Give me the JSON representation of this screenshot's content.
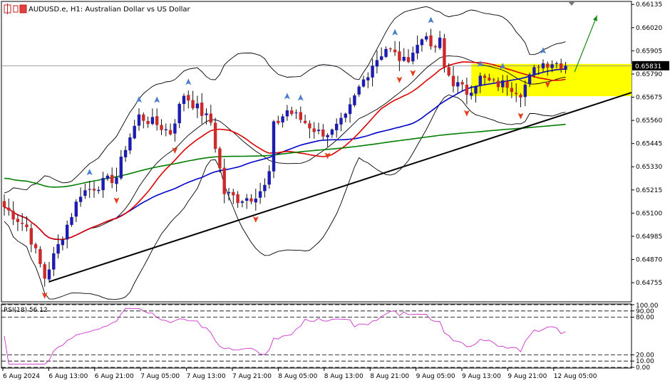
{
  "header": {
    "symbol": "AUDUSD.e",
    "timeframe": "H1",
    "description": "Australian Dollar vs US Dollar",
    "text": "AUDUSD.e, H1:  Australian Dollar vs US Dollar"
  },
  "chart_data": {
    "type": "candlestick",
    "price_axis_ticks": [
      "0.66135",
      "0.66020",
      "0.65905",
      "0.65790",
      "0.65675",
      "0.65560",
      "0.65445",
      "0.65330",
      "0.65215",
      "0.65100",
      "0.64985",
      "0.64870",
      "0.64755"
    ],
    "ylim": [
      0.6466,
      0.6615
    ],
    "current_price_label": "0.65831",
    "current_price": 0.65831,
    "time_axis_labels": [
      "6 Aug 2024",
      "6 Aug 13:00",
      "6 Aug 21:00",
      "7 Aug 05:00",
      "7 Aug 13:00",
      "7 Aug 21:00",
      "8 Aug 05:00",
      "8 Aug 13:00",
      "8 Aug 21:00",
      "9 Aug 05:00",
      "9 Aug 13:00",
      "9 Aug 21:00",
      "12 Aug 05:00"
    ],
    "candles_shown": 126,
    "close_anchors": [
      [
        0,
        0.6513
      ],
      [
        5,
        0.6503
      ],
      [
        9,
        0.6478
      ],
      [
        13,
        0.6499
      ],
      [
        17,
        0.652
      ],
      [
        21,
        0.6524
      ],
      [
        25,
        0.6528
      ],
      [
        27,
        0.6543
      ],
      [
        30,
        0.6558
      ],
      [
        34,
        0.6554
      ],
      [
        37,
        0.655
      ],
      [
        40,
        0.6569
      ],
      [
        43,
        0.6562
      ],
      [
        46,
        0.6555
      ],
      [
        49,
        0.652
      ],
      [
        52,
        0.6517
      ],
      [
        55,
        0.6518
      ],
      [
        58,
        0.6523
      ],
      [
        59,
        0.653
      ],
      [
        60,
        0.6553
      ],
      [
        63,
        0.6561
      ],
      [
        67,
        0.6555
      ],
      [
        70,
        0.655
      ],
      [
        73,
        0.655
      ],
      [
        76,
        0.6557
      ],
      [
        79,
        0.6572
      ],
      [
        82,
        0.6584
      ],
      [
        85,
        0.6592
      ],
      [
        89,
        0.6585
      ],
      [
        92,
        0.6593
      ],
      [
        94,
        0.66
      ],
      [
        95,
        0.659
      ],
      [
        97,
        0.6595
      ],
      [
        98,
        0.6582
      ],
      [
        100,
        0.6575
      ],
      [
        103,
        0.657
      ],
      [
        106,
        0.6577
      ],
      [
        109,
        0.6574
      ],
      [
        112,
        0.6574
      ],
      [
        115,
        0.657
      ],
      [
        117,
        0.6577
      ],
      [
        119,
        0.6584
      ],
      [
        122,
        0.6585
      ],
      [
        125,
        0.65831
      ]
    ],
    "bullish_color": "#1c1cb0",
    "bearish_color": "#cc2a2a",
    "indicators": [
      {
        "name": "MA (blue)",
        "color": "#0000cc"
      },
      {
        "name": "MA (red)",
        "color": "#dd0000"
      },
      {
        "name": "MA (green)",
        "color": "#007f00"
      },
      {
        "name": "Bollinger Bands",
        "color": "#000000"
      }
    ],
    "highlight_zone": {
      "y_from": 0.6568,
      "y_to": 0.6584,
      "color": "#ffff00"
    },
    "trendline": {
      "from": [
        10,
        0.6476
      ],
      "to": [
        140,
        0.657
      ]
    },
    "fractal_up_color": "#4a7ec8",
    "fractal_down_color": "#e53b1a",
    "rsi": {
      "label": "RSI(18) 56.12",
      "period": 18,
      "value": 56.12,
      "levels": [
        "100.00",
        "90.00",
        "80.00",
        "20.00",
        "10.00",
        "0.00"
      ],
      "color": "#cc33cc"
    }
  }
}
